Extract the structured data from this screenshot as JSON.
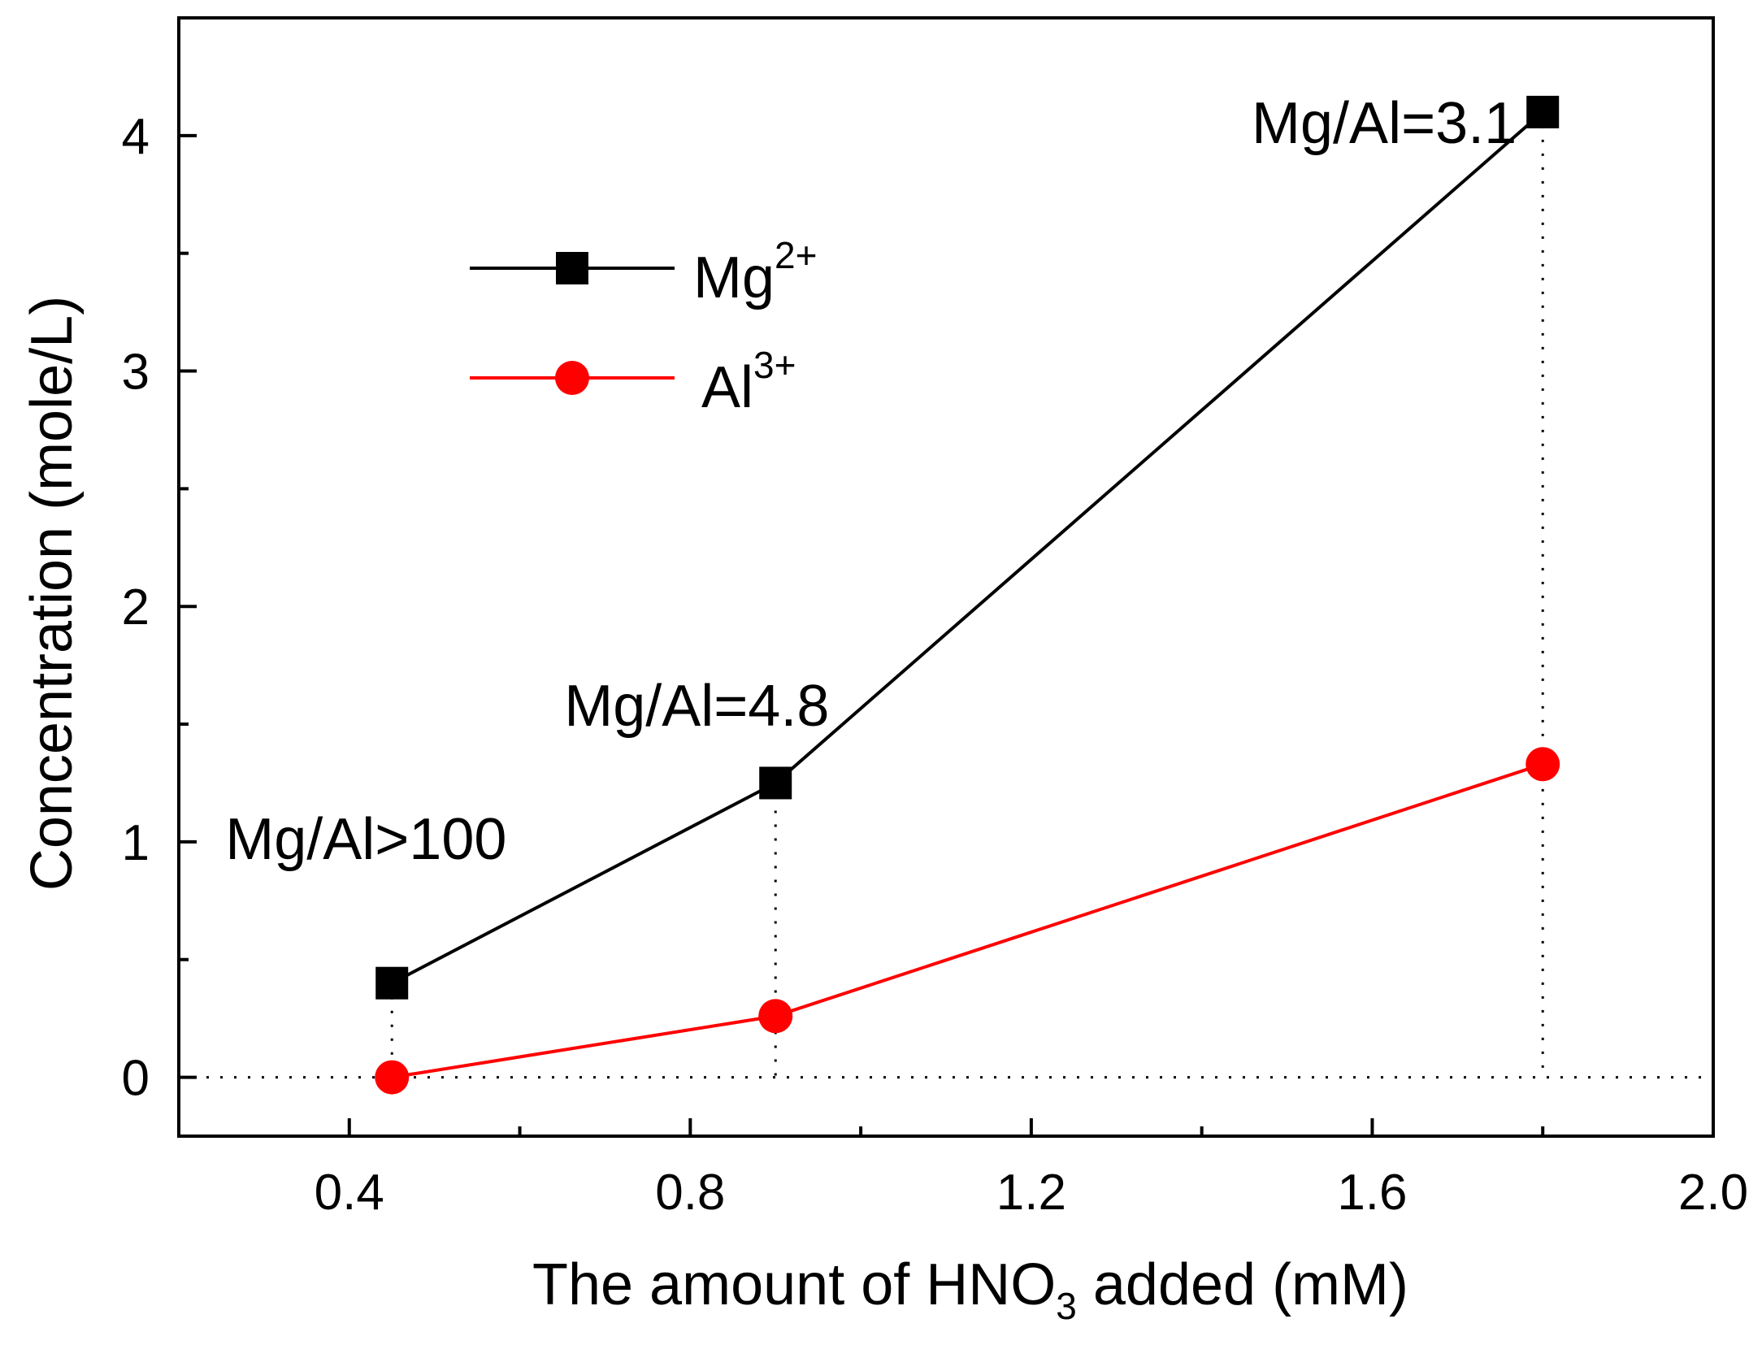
{
  "chart_data": {
    "type": "line",
    "title": "",
    "xlabel": {
      "main": "The amount of HNO",
      "sub": "3",
      "rest": " added (mM)"
    },
    "ylabel": "Concentration (mole/L)",
    "xlim": [
      0.2,
      2.0
    ],
    "ylim": [
      -0.25,
      4.5
    ],
    "xticks": [
      0.4,
      0.8,
      1.2,
      1.6,
      2.0
    ],
    "xtick_labels": [
      "0.4",
      "0.8",
      "1.2",
      "1.6",
      "2.0"
    ],
    "xminor": [
      0.6,
      1.0,
      1.4,
      1.8
    ],
    "yticks": [
      0,
      1,
      2,
      3,
      4
    ],
    "ytick_labels": [
      "0",
      "1",
      "2",
      "3",
      "4"
    ],
    "yminor": [
      0.5,
      1.5,
      2.5,
      3.5
    ],
    "x": [
      0.45,
      0.9,
      1.8
    ],
    "series": [
      {
        "name": "Mg",
        "sup": "2+",
        "color": "#000000",
        "marker": "square",
        "values": [
          0.4,
          1.25,
          4.1
        ]
      },
      {
        "name": "Al",
        "sup": "3+",
        "color": "#ff0000",
        "marker": "circle",
        "values": [
          0.0,
          0.26,
          1.33
        ]
      }
    ],
    "annotations": [
      {
        "text": "Mg/Al>100",
        "x": 0.45
      },
      {
        "text": "Mg/Al=4.8",
        "x": 0.9
      },
      {
        "text": "Mg/Al=3.1",
        "x": 1.8
      }
    ],
    "legend_position": "upper-left",
    "grid": false,
    "reference_lines": {
      "horizontal_y": 0,
      "vertical_at_x": [
        0.45,
        0.9,
        1.8
      ],
      "style": "dotted"
    }
  }
}
